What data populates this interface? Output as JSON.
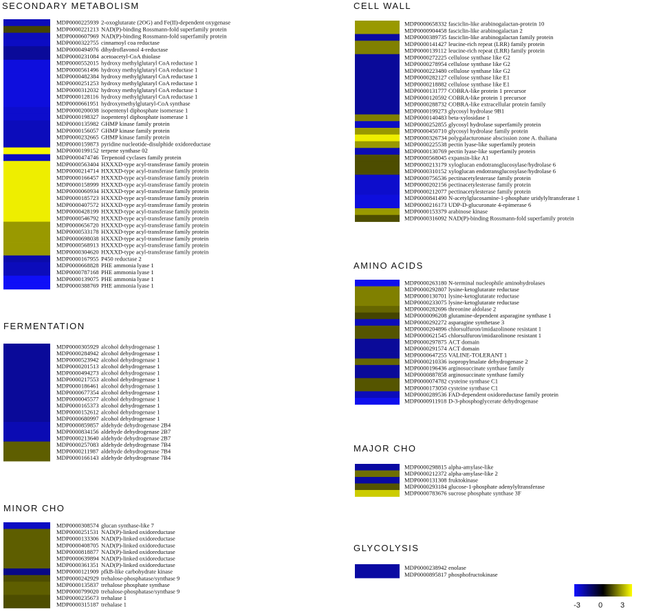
{
  "chart_data": {
    "type": "heatmap",
    "color_scale": {
      "min": -3,
      "mid": 0,
      "max": 3,
      "low_color": "#1010ff",
      "mid_color": "#000000",
      "high_color": "#ffff00",
      "tick_labels": [
        "-3",
        "0",
        "3"
      ]
    },
    "panels": [
      {
        "title": "SECONDARY METABOLISM",
        "genes": [
          {
            "id": "MDP0000225939",
            "desc": "2-oxoglutarate (2OG) and Fe(II)-dependent oxygenase",
            "value": -2.2
          },
          {
            "id": "MDP0000221213",
            "desc": "NAD(P)-binding Rossmann-fold superfamily protein",
            "value": 0.8
          },
          {
            "id": "MDP0000607969",
            "desc": "NAD(P)-binding Rossmann-fold superfamily protein",
            "value": -2.2
          },
          {
            "id": "MDP0000322755",
            "desc": "cinnamoyl coa reductase",
            "value": -2.3
          },
          {
            "id": "MDP0000494976",
            "desc": "dihydroflavonol 4-reductase",
            "value": -1.8
          },
          {
            "id": "MDP0000231084",
            "desc": "acetoacetyl-CoA thiolase",
            "value": -1.8
          },
          {
            "id": "MDP0000552015",
            "desc": "hydroxy methylglutaryl CoA reductase 1",
            "value": -2.6
          },
          {
            "id": "MDP0000561496",
            "desc": "hydroxy methylglutaryl CoA reductase 1",
            "value": -2.6
          },
          {
            "id": "MDP0000482384",
            "desc": "hydroxy methylglutaryl CoA reductase 1",
            "value": -2.6
          },
          {
            "id": "MDP0000251253",
            "desc": "hydroxy methylglutaryl CoA reductase 1",
            "value": -2.6
          },
          {
            "id": "MDP0000312032",
            "desc": "hydroxy methylglutaryl CoA reductase 1",
            "value": -2.6
          },
          {
            "id": "MDP0000128116",
            "desc": "hydroxy methylglutaryl CoA reductase 1",
            "value": -2.6
          },
          {
            "id": "MDP0000661951",
            "desc": "hydroxymethylglutaryl-CoA synthase",
            "value": -2.6
          },
          {
            "id": "MDP0000200038",
            "desc": "isopentenyl diphosphate isomerase 1",
            "value": -2.4
          },
          {
            "id": "MDP0000198327",
            "desc": "isopentenyl diphosphate isomerase 1",
            "value": -2.4
          },
          {
            "id": "MDP0000135982",
            "desc": "GHMP kinase family protein",
            "value": -2.2
          },
          {
            "id": "MDP0000156057",
            "desc": "GHMP kinase family protein",
            "value": -2.2
          },
          {
            "id": "MDP0000232665",
            "desc": "GHMP kinase family protein",
            "value": -2.2
          },
          {
            "id": "MDP0000159873",
            "desc": "pyridine nucleotide-disulphide oxidoreductase",
            "value": -2.2
          },
          {
            "id": "MDP0000199152",
            "desc": "terpene synthase 02",
            "value": 2.9
          },
          {
            "id": "MDP0000474746",
            "desc": "Terpenoid cyclases family protein",
            "value": -2.3
          },
          {
            "id": "MDP0000563404",
            "desc": "HXXXD-type acyl-transferase family protein",
            "value": 2.8
          },
          {
            "id": "MDP0000214714",
            "desc": "HXXXD-type acyl-transferase family protein",
            "value": 2.8
          },
          {
            "id": "MDP0000166457",
            "desc": "HXXXD-type acyl-transferase family protein",
            "value": 2.8
          },
          {
            "id": "MDP0000158999",
            "desc": "HXXXD-type acyl-transferase family protein",
            "value": 2.8
          },
          {
            "id": "MDP0000060934",
            "desc": "HXXXD-type acyl-transferase family protein",
            "value": 2.8
          },
          {
            "id": "MDP0000185723",
            "desc": "HXXXD-type acyl-transferase family protein",
            "value": 2.8
          },
          {
            "id": "MDP0000407572",
            "desc": "HXXXD-type acyl-transferase family protein",
            "value": 2.8
          },
          {
            "id": "MDP0000428199",
            "desc": "HXXXD-type acyl-transferase family protein",
            "value": 2.8
          },
          {
            "id": "MDP0000546792",
            "desc": "HXXXD-type acyl-transferase family protein",
            "value": 2.8
          },
          {
            "id": "MDP0000656720",
            "desc": "HXXXD-type acyl-transferase family protein",
            "value": 1.8
          },
          {
            "id": "MDP0000533178",
            "desc": "HXXXD-type acyl-transferase family protein",
            "value": 1.8
          },
          {
            "id": "MDP0000698038",
            "desc": "HXXXD-type acyl-transferase family protein",
            "value": 1.8
          },
          {
            "id": "MDP0000568913",
            "desc": "HXXXD-type acyl-transferase family protein",
            "value": 1.8
          },
          {
            "id": "MDP0000304620",
            "desc": "HXXXD-type acyl-transferase family protein",
            "value": 1.8
          },
          {
            "id": "MDP0000167955",
            "desc": "P450 reductase 2",
            "value": -2.0
          },
          {
            "id": "MDP0000668828",
            "desc": "PHE ammonia lyase 1",
            "value": -2.2
          },
          {
            "id": "MDP0000787168",
            "desc": "PHE ammonia lyase 1",
            "value": -2.2
          },
          {
            "id": "MDP0000139075",
            "desc": "PHE ammonia lyase 1",
            "value": -2.9
          },
          {
            "id": "MDP0000388769",
            "desc": "PHE ammonia lyase 1",
            "value": -2.9
          }
        ]
      },
      {
        "title": "FERMENTATION",
        "genes": [
          {
            "id": "MDP0000305929",
            "desc": "alcohol dehydrogenase 1",
            "value": -1.8
          },
          {
            "id": "MDP0000284942",
            "desc": "alcohol dehydrogenase 1",
            "value": -1.8
          },
          {
            "id": "MDP0000523942",
            "desc": "alcohol dehydrogenase 1",
            "value": -1.8
          },
          {
            "id": "MDP0000201513",
            "desc": "alcohol dehydrogenase 1",
            "value": -1.8
          },
          {
            "id": "MDP0000494273",
            "desc": "alcohol dehydrogenase 1",
            "value": -1.8
          },
          {
            "id": "MDP0000217553",
            "desc": "alcohol dehydrogenase 1",
            "value": -1.8
          },
          {
            "id": "MDP0000186461",
            "desc": "alcohol dehydrogenase 1",
            "value": -1.8
          },
          {
            "id": "MDP0000677354",
            "desc": "alcohol dehydrogenase 1",
            "value": -1.8
          },
          {
            "id": "MDP0000045577",
            "desc": "alcohol dehydrogenase 1",
            "value": -1.8
          },
          {
            "id": "MDP0000165373",
            "desc": "alcohol dehydrogenase 1",
            "value": -1.8
          },
          {
            "id": "MDP0000152612",
            "desc": "alcohol dehydrogenase 1",
            "value": -1.8
          },
          {
            "id": "MDP0000680997",
            "desc": "alcohol dehydrogenase 1",
            "value": -1.8
          },
          {
            "id": "MDP0000859857",
            "desc": "aldehyde dehydrogenase 2B4",
            "value": -2.1
          },
          {
            "id": "MDP0000834156",
            "desc": "aldehyde dehydrogenase 2B7",
            "value": -2.1
          },
          {
            "id": "MDP0000213640",
            "desc": "aldehyde dehydrogenase 2B7",
            "value": -2.1
          },
          {
            "id": "MDP0000257083",
            "desc": "aldehyde dehydrogenase 7B4",
            "value": 1.1
          },
          {
            "id": "MDP0000211987",
            "desc": "aldehyde dehydrogenase 7B4",
            "value": 1.1
          },
          {
            "id": "MDP0000166143",
            "desc": "aldehyde dehydrogenase 7B4",
            "value": 1.1
          }
        ]
      },
      {
        "title": "MINOR CHO",
        "genes": [
          {
            "id": "MDP0000308574",
            "desc": "glucan synthase-like 7",
            "value": -2.3
          },
          {
            "id": "MDP0000251531",
            "desc": "NAD(P)-linked oxidoreductase",
            "value": 1.1
          },
          {
            "id": "MDP0000133306",
            "desc": "NAD(P)-linked oxidoreductase",
            "value": 1.1
          },
          {
            "id": "MDP0000408705",
            "desc": "NAD(P)-linked oxidoreductase",
            "value": 1.1
          },
          {
            "id": "MDP0000818877",
            "desc": "NAD(P)-linked oxidoreductase",
            "value": 1.1
          },
          {
            "id": "MDP0000639894",
            "desc": "NAD(P)-linked oxidoreductase",
            "value": 1.1
          },
          {
            "id": "MDP0000361351",
            "desc": "NAD(P)-linked oxidoreductase",
            "value": 1.1
          },
          {
            "id": "MDP0000121909",
            "desc": "pfkB-like carbohydrate kinase",
            "value": -1.6
          },
          {
            "id": "MDP0000242929",
            "desc": "trehalose-phosphatase/synthase 9",
            "value": 0.9
          },
          {
            "id": "MDP0000135837",
            "desc": "trehalose phosphate synthase",
            "value": 1.1
          },
          {
            "id": "MDP0000799020",
            "desc": "trehalose-phosphatase/synthase 9",
            "value": 1.1
          },
          {
            "id": "MDP0000235673",
            "desc": "trehalase 1",
            "value": 0.9
          },
          {
            "id": "MDP0000315187",
            "desc": "trehalase 1",
            "value": 0.9
          }
        ]
      },
      {
        "title": "CELL WALL",
        "genes": [
          {
            "id": "MDP0000658332",
            "desc": "fasciclin-like arabinogalactan-protein 10",
            "value": 1.8
          },
          {
            "id": "MDP0000904458",
            "desc": "fasciclin-like arabinogalactan 2",
            "value": 1.8
          },
          {
            "id": "MDP0000389735",
            "desc": "fasciclin-like arabinogalactan family protein",
            "value": -1.9
          },
          {
            "id": "MDP0000141427",
            "desc": "leucine-rich repeat (LRR) family protein",
            "value": 1.5
          },
          {
            "id": "MDP0000139112",
            "desc": "leucine-rich repeat (LRR) family protein",
            "value": 1.5
          },
          {
            "id": "MDP0000272225",
            "desc": "cellulose synthase like G2",
            "value": -1.8
          },
          {
            "id": "MDP0000278954",
            "desc": "cellulose synthase like G2",
            "value": -1.8
          },
          {
            "id": "MDP0000223480",
            "desc": "cellulose synthase like G2",
            "value": -1.8
          },
          {
            "id": "MDP0000282127",
            "desc": "cellulose synthase like E1",
            "value": -1.8
          },
          {
            "id": "MDP0000218882",
            "desc": "cellulose synthase like E1",
            "value": -1.8
          },
          {
            "id": "MDP0000131777",
            "desc": "COBRA-like protein 1 precursor",
            "value": -1.8
          },
          {
            "id": "MDP0000120592",
            "desc": "COBRA-like protein 1 precursor",
            "value": -1.8
          },
          {
            "id": "MDP0000288732",
            "desc": "COBRA-like extracellular protein family",
            "value": -1.8
          },
          {
            "id": "MDP0000199273",
            "desc": "glycosyl hydrolase 9B1",
            "value": -1.8
          },
          {
            "id": "MDP0000140483",
            "desc": "beta-xylosidase 1",
            "value": 1.5
          },
          {
            "id": "MDP0000252855",
            "desc": "glycosyl hydrolase superfamily protein",
            "value": -2.3
          },
          {
            "id": "MDP0000450710",
            "desc": "glycosyl hydrolase family protein",
            "value": 1.8
          },
          {
            "id": "MDP0000326734",
            "desc": "polygalacturonase abscission zone A. thaliana",
            "value": 2.8
          },
          {
            "id": "MDP0000225538",
            "desc": "pectin lyase-like superfamily protein",
            "value": 1.8
          },
          {
            "id": "MDP0000130769",
            "desc": "pectin lyase-like superfamily protein",
            "value": -2.1
          },
          {
            "id": "MDP0000568045",
            "desc": "expansin-like A1",
            "value": 0.9
          },
          {
            "id": "MDP0000213179",
            "desc": "xyloglucan endotransglucosylase/hydrolase 6",
            "value": 0.9
          },
          {
            "id": "MDP0000310152",
            "desc": "xyloglucan endotransglucosylase/hydrolase 6",
            "value": 0.9
          },
          {
            "id": "MDP0000756536",
            "desc": "pectinacetylesterase family protein",
            "value": -2.4
          },
          {
            "id": "MDP0000202156",
            "desc": "pectinacetylesterase family protein",
            "value": -2.4
          },
          {
            "id": "MDP0000212077",
            "desc": "pectinacetylesterase family protein",
            "value": -2.4
          },
          {
            "id": "MDP0000841490",
            "desc": "N-acetylglucosamine-1-phosphate uridylyltransferase 1",
            "value": -2.6
          },
          {
            "id": "MDP0000216173",
            "desc": "UDP-D-glucuronate 4-epimerase 6",
            "value": -2.6
          },
          {
            "id": "MDP0000153379",
            "desc": "arabinose kinase",
            "value": 1.8
          },
          {
            "id": "MDP0000316092",
            "desc": "NAD(P)-binding Rossmann-fold superfamily protein",
            "value": 0.9
          }
        ]
      },
      {
        "title": "AMINO ACIDS",
        "genes": [
          {
            "id": "MDP0000263180",
            "desc": "N-terminal nucleophile aminohydrolases",
            "value": -2.8
          },
          {
            "id": "MDP0000292807",
            "desc": "lysine-ketoglutarate reductase",
            "value": 1.5
          },
          {
            "id": "MDP0000130701",
            "desc": "lysine-ketoglutarate reductase",
            "value": 1.5
          },
          {
            "id": "MDP0000233075",
            "desc": "lysine-ketoglutarate reductase",
            "value": 1.5
          },
          {
            "id": "MDP0000282696",
            "desc": "threonine aldolase 2",
            "value": 1.2
          },
          {
            "id": "MDP0000096208",
            "desc": "glutamine-dependent asparagine synthase 1",
            "value": 0.8
          },
          {
            "id": "MDP0000292272",
            "desc": "asparagine synthetase 3",
            "value": -2.2
          },
          {
            "id": "MDP0000204896",
            "desc": "chlorsulfuron/imidazolinone resistant 1",
            "value": 1.0
          },
          {
            "id": "MDP0000621545",
            "desc": "chlorsulfuron/imidazolinone resistant 1",
            "value": 1.0
          },
          {
            "id": "MDP0000297875",
            "desc": "ACT domain",
            "value": -1.8
          },
          {
            "id": "MDP0000291574",
            "desc": "ACT domain",
            "value": -1.8
          },
          {
            "id": "MDP0000647255",
            "desc": "VALINE-TOLERANT 1",
            "value": -1.8
          },
          {
            "id": "MDP0000210336",
            "desc": "isopropylmalate dehydrogenase 2",
            "value": 1.2
          },
          {
            "id": "MDP0000196436",
            "desc": "arginosuccinate synthase family",
            "value": -1.8
          },
          {
            "id": "MDP0000887858",
            "desc": "arginosuccinate synthase family",
            "value": -1.8
          },
          {
            "id": "MDP0000074782",
            "desc": "cysteine synthase C1",
            "value": 1.0
          },
          {
            "id": "MDP0000173050",
            "desc": "cysteine synthase C1",
            "value": 1.0
          },
          {
            "id": "MDP0000289536",
            "desc": "FAD-dependent oxidoreductase family protein",
            "value": -2.2
          },
          {
            "id": "MDP0000911918",
            "desc": "D-3-phosphoglycerate dehydrogenase",
            "value": -2.8
          }
        ]
      },
      {
        "title": "MAJOR CHO",
        "genes": [
          {
            "id": "MDP0000298815",
            "desc": "alpha-amylase-like",
            "value": -1.9
          },
          {
            "id": "MDP0000212372",
            "desc": "alpha-amylase-like 2",
            "value": 1.3
          },
          {
            "id": "MDP0000131308",
            "desc": "fruktokinase",
            "value": -1.9
          },
          {
            "id": "MDP0000293184",
            "desc": "glucose-1-phosphate adenylyltransferase",
            "value": 1.0
          },
          {
            "id": "MDP0000783676",
            "desc": "sucrose phosphate synthase 3F",
            "value": 2.4
          }
        ]
      },
      {
        "title": "GLYCOLYSIS",
        "genes": [
          {
            "id": "MDP0000238942",
            "desc": "enolase",
            "value": -1.9
          },
          {
            "id": "MDP0000895817",
            "desc": "phosphofructokinase",
            "value": -1.9
          }
        ]
      }
    ]
  }
}
